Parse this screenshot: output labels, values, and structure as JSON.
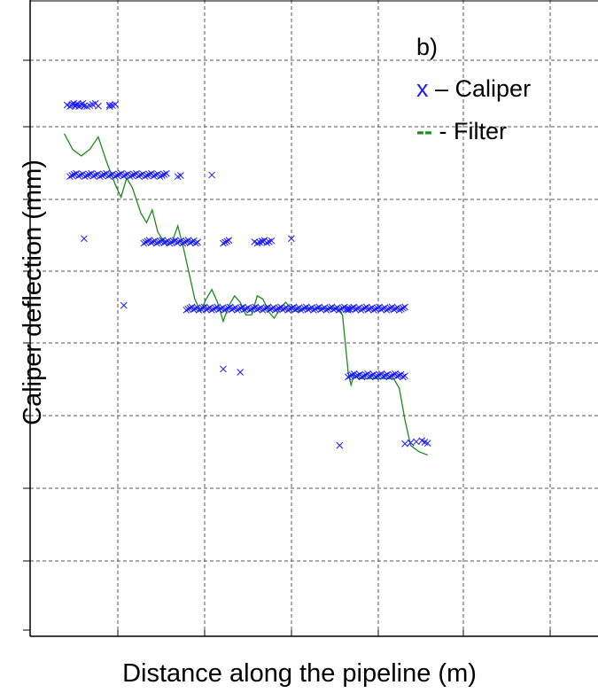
{
  "chart_data": {
    "type": "scatter",
    "panel_label": "b)",
    "xlabel": "Distance along the pipeline (m)",
    "ylabel": "Caliper deflection (mm)",
    "xlim": [
      0,
      10
    ],
    "ylim": [
      0,
      10
    ],
    "grid": true,
    "legend_position": "top-right",
    "legend": {
      "caliper_marker": "x",
      "caliper_text": " – Caliper",
      "filter_marker": "--",
      "filter_text": " - Filter"
    },
    "colors": {
      "caliper": "#1a1aff",
      "filter": "#1a8c1a",
      "grid": "#555555"
    },
    "series": [
      {
        "name": "Caliper",
        "kind": "scatter",
        "marker": "x",
        "clusters": [
          {
            "x0": 0.7,
            "x1": 0.95,
            "y": 8.35,
            "n": 12
          },
          {
            "x0": 1.0,
            "x1": 1.2,
            "y": 8.35,
            "n": 5
          },
          {
            "x0": 1.4,
            "x1": 1.5,
            "y": 8.35,
            "n": 3
          },
          {
            "x0": 0.7,
            "x1": 2.4,
            "y": 7.25,
            "n": 46
          },
          {
            "x0": 2.6,
            "x1": 2.65,
            "y": 7.25,
            "n": 2
          },
          {
            "x0": 2.0,
            "x1": 2.95,
            "y": 6.2,
            "n": 30
          },
          {
            "x0": 3.4,
            "x1": 3.5,
            "y": 6.2,
            "n": 4
          },
          {
            "x0": 4.0,
            "x1": 4.25,
            "y": 6.2,
            "n": 7
          },
          {
            "x0": 2.75,
            "x1": 5.6,
            "y": 5.15,
            "n": 90
          },
          {
            "x0": 5.6,
            "x1": 6.6,
            "y": 5.15,
            "n": 32
          },
          {
            "x0": 5.6,
            "x1": 6.6,
            "y": 4.1,
            "n": 30
          },
          {
            "x0": 6.6,
            "x1": 7.0,
            "y": 3.05,
            "n": 5
          }
        ],
        "outliers": [
          [
            0.65,
            8.35
          ],
          [
            1.4,
            8.35
          ],
          [
            0.95,
            6.25
          ],
          [
            1.65,
            5.2
          ],
          [
            3.2,
            7.25
          ],
          [
            3.4,
            4.2
          ],
          [
            3.7,
            4.15
          ],
          [
            3.95,
            6.2
          ],
          [
            4.1,
            6.2
          ],
          [
            4.6,
            6.25
          ],
          [
            5.45,
            3.0
          ],
          [
            6.95,
            3.05
          ]
        ]
      },
      {
        "name": "Filter",
        "kind": "line",
        "points": [
          [
            0.6,
            7.9
          ],
          [
            0.75,
            7.65
          ],
          [
            0.9,
            7.55
          ],
          [
            1.05,
            7.65
          ],
          [
            1.2,
            7.85
          ],
          [
            1.35,
            7.45
          ],
          [
            1.5,
            7.1
          ],
          [
            1.6,
            6.9
          ],
          [
            1.7,
            7.2
          ],
          [
            1.8,
            7.05
          ],
          [
            1.95,
            6.65
          ],
          [
            2.05,
            6.5
          ],
          [
            2.15,
            6.7
          ],
          [
            2.25,
            6.35
          ],
          [
            2.4,
            6.15
          ],
          [
            2.5,
            6.2
          ],
          [
            2.6,
            6.45
          ],
          [
            2.7,
            6.1
          ],
          [
            2.8,
            5.7
          ],
          [
            2.9,
            5.3
          ],
          [
            3.0,
            5.1
          ],
          [
            3.1,
            5.3
          ],
          [
            3.2,
            5.45
          ],
          [
            3.3,
            5.25
          ],
          [
            3.4,
            4.95
          ],
          [
            3.5,
            5.2
          ],
          [
            3.6,
            5.35
          ],
          [
            3.7,
            5.25
          ],
          [
            3.8,
            5.05
          ],
          [
            3.9,
            5.05
          ],
          [
            4.0,
            5.35
          ],
          [
            4.1,
            5.3
          ],
          [
            4.2,
            5.1
          ],
          [
            4.3,
            5.0
          ],
          [
            4.4,
            5.15
          ],
          [
            4.5,
            5.25
          ],
          [
            4.6,
            5.15
          ],
          [
            4.7,
            5.1
          ],
          [
            4.8,
            5.15
          ],
          [
            5.0,
            5.15
          ],
          [
            5.2,
            5.15
          ],
          [
            5.4,
            5.15
          ],
          [
            5.5,
            5.05
          ],
          [
            5.55,
            4.6
          ],
          [
            5.6,
            4.15
          ],
          [
            5.65,
            3.95
          ],
          [
            5.7,
            4.1
          ],
          [
            5.8,
            4.05
          ],
          [
            6.0,
            4.05
          ],
          [
            6.2,
            4.05
          ],
          [
            6.4,
            4.05
          ],
          [
            6.5,
            3.9
          ],
          [
            6.6,
            3.4
          ],
          [
            6.7,
            3.0
          ],
          [
            6.85,
            2.9
          ],
          [
            7.0,
            2.85
          ]
        ]
      }
    ]
  }
}
